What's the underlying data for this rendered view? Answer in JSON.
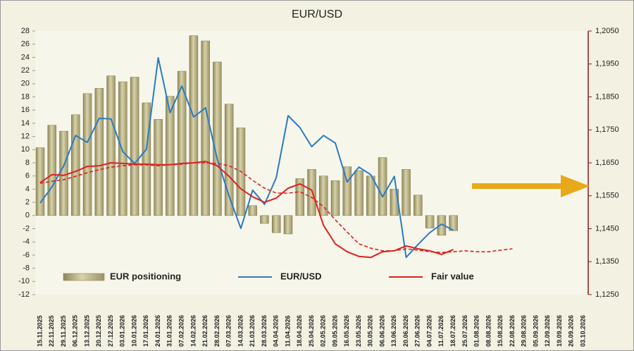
{
  "chart_data": {
    "type": "bar",
    "title": "EUR/USD",
    "categories": [
      "15.11.2025",
      "22.11.2025",
      "29.11.2025",
      "06.12.2025",
      "13.12.2025",
      "20.12.2025",
      "27.12.2025",
      "03.01.2026",
      "10.01.2026",
      "17.01.2026",
      "24.01.2026",
      "31.01.2026",
      "07.02.2026",
      "14.02.2026",
      "21.02.2026",
      "28.02.2026",
      "07.03.2026",
      "14.03.2026",
      "21.03.2026",
      "28.03.2026",
      "04.04.2026",
      "11.04.2026",
      "18.04.2026",
      "25.04.2026",
      "02.05.2026",
      "09.05.2026",
      "16.05.2026",
      "23.05.2026",
      "30.05.2026",
      "06.06.2026",
      "13.06.2026",
      "20.06.2026",
      "27.06.2026",
      "04.07.2026",
      "11.07.2026",
      "18.07.2026",
      "25.07.2026",
      "01.08.2026",
      "08.08.2026",
      "15.08.2026",
      "22.08.2026",
      "29.08.2026",
      "05.09.2026",
      "12.09.2026",
      "19.09.2026",
      "26.09.2026",
      "03.10.2026"
    ],
    "series": [
      {
        "name": "EUR positioning",
        "type": "bar",
        "color": "#bdb58a",
        "axis": "y",
        "values": [
          10.3,
          13.7,
          12.8,
          15.3,
          18.5,
          19.3,
          21.2,
          20.3,
          21,
          17.1,
          14.6,
          18.1,
          21.9,
          27.3,
          26.5,
          23.3,
          16.9,
          13.3,
          1.5,
          -1.2,
          -2.6,
          -2.8,
          5.6,
          7,
          6,
          5.3,
          7.4,
          6.8,
          6,
          8.8,
          4,
          7,
          3.1,
          -1.9,
          -3,
          -2.3,
          null,
          null,
          null,
          null,
          null,
          null,
          null,
          null,
          null,
          null,
          null
        ]
      },
      {
        "name": "EUR/USD",
        "type": "line",
        "color": "#2a7bc4",
        "axis": "y2",
        "values": [
          1.1528,
          1.1577,
          1.1641,
          1.1733,
          1.1712,
          1.1785,
          1.1783,
          1.1684,
          1.1648,
          1.1691,
          1.1969,
          1.1802,
          1.1883,
          1.1789,
          1.1817,
          1.1661,
          1.1549,
          1.1451,
          1.1567,
          1.1524,
          1.1605,
          1.1793,
          1.1757,
          1.1699,
          1.1733,
          1.171,
          1.1592,
          1.1637,
          1.1614,
          1.1547,
          1.1609,
          1.1363,
          1.1402,
          1.1438,
          1.1464,
          1.1445,
          null,
          null,
          null,
          null,
          null,
          null,
          null,
          null,
          null,
          null,
          null
        ]
      },
      {
        "name": "Fair value",
        "type": "line",
        "color": "#e02020",
        "axis": "y2",
        "values": [
          1.159,
          1.1614,
          1.1612,
          1.1624,
          1.1639,
          1.1641,
          1.165,
          1.1648,
          1.1646,
          1.1646,
          1.1644,
          1.1644,
          1.1648,
          1.165,
          1.1654,
          1.1641,
          1.1609,
          1.1571,
          1.1547,
          1.153,
          1.1543,
          1.1573,
          1.1586,
          1.1567,
          1.146,
          1.1404,
          1.138,
          1.1366,
          1.1363,
          1.138,
          1.1383,
          1.1398,
          1.1389,
          1.1383,
          1.1372,
          1.1387,
          null,
          null,
          null,
          null,
          null,
          null,
          null,
          null,
          null,
          null,
          null
        ]
      },
      {
        "type": "line",
        "dashed": true,
        "color": "#e02020",
        "axis": "y2",
        "values": [
          1.1588,
          1.1594,
          1.1599,
          1.1609,
          1.162,
          1.1629,
          1.1637,
          1.1641,
          1.1644,
          1.1644,
          1.1641,
          1.1644,
          1.1646,
          1.165,
          1.165,
          1.1648,
          1.1641,
          1.1624,
          1.1597,
          1.1573,
          1.1558,
          1.1558,
          1.1562,
          1.1545,
          1.1517,
          1.1477,
          1.144,
          1.1404,
          1.1391,
          1.1383,
          1.1383,
          1.1389,
          1.1385,
          1.138,
          1.1378,
          1.138,
          1.1383,
          1.138,
          1.138,
          1.1385,
          1.1389,
          null,
          null,
          null,
          null,
          null,
          null
        ]
      }
    ],
    "ylim": [
      -12,
      28
    ],
    "yticks": [
      -12,
      -10,
      -8,
      -6,
      -4,
      -2,
      0,
      2,
      4,
      6,
      8,
      10,
      12,
      14,
      16,
      18,
      20,
      22,
      24,
      26,
      28
    ],
    "y2lim": [
      1.125,
      1.205
    ],
    "y2ticks": [
      {
        "value": 1.125,
        "label": "1,1250"
      },
      {
        "value": 1.135,
        "label": "1,1350"
      },
      {
        "value": 1.145,
        "label": "1,1450"
      },
      {
        "value": 1.155,
        "label": "1,1550"
      },
      {
        "value": 1.165,
        "label": "1,1650"
      },
      {
        "value": 1.175,
        "label": "1,1750"
      },
      {
        "value": 1.185,
        "label": "1,1850"
      },
      {
        "value": 1.195,
        "label": "1,1950"
      },
      {
        "value": 1.205,
        "label": "1,2050"
      }
    ],
    "grid": false
  }
}
